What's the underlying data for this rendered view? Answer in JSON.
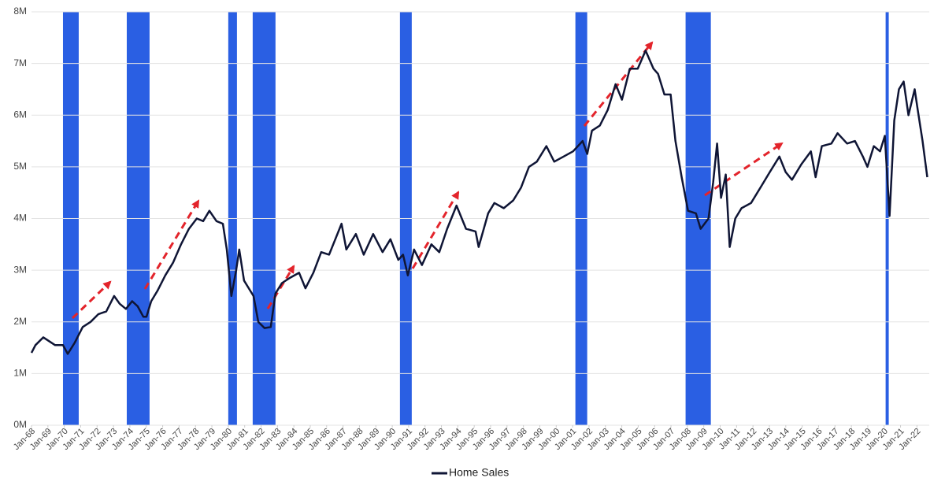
{
  "chart_data": {
    "type": "line",
    "xlim": [
      1968,
      2022.75
    ],
    "ylim": [
      0,
      8
    ],
    "yticks": [
      {
        "value": 0,
        "label": "0M"
      },
      {
        "value": 1,
        "label": "1M"
      },
      {
        "value": 2,
        "label": "2M"
      },
      {
        "value": 3,
        "label": "3M"
      },
      {
        "value": 4,
        "label": "4M"
      },
      {
        "value": 5,
        "label": "5M"
      },
      {
        "value": 6,
        "label": "6M"
      },
      {
        "value": 7,
        "label": "7M"
      },
      {
        "value": 8,
        "label": "8M"
      }
    ],
    "xticks": [
      {
        "value": 1968,
        "label": "Jan-68"
      },
      {
        "value": 1969,
        "label": "Jan-69"
      },
      {
        "value": 1970,
        "label": "Jan-70"
      },
      {
        "value": 1971,
        "label": "Jan-71"
      },
      {
        "value": 1972,
        "label": "Jan-72"
      },
      {
        "value": 1973,
        "label": "Jan-73"
      },
      {
        "value": 1974,
        "label": "Jan-74"
      },
      {
        "value": 1975,
        "label": "Jan-75"
      },
      {
        "value": 1976,
        "label": "Jan-76"
      },
      {
        "value": 1977,
        "label": "Jan-77"
      },
      {
        "value": 1978,
        "label": "Jan-78"
      },
      {
        "value": 1979,
        "label": "Jan-79"
      },
      {
        "value": 1980,
        "label": "Jan-80"
      },
      {
        "value": 1981,
        "label": "Jan-81"
      },
      {
        "value": 1982,
        "label": "Jan-82"
      },
      {
        "value": 1983,
        "label": "Jan-83"
      },
      {
        "value": 1984,
        "label": "Jan-84"
      },
      {
        "value": 1985,
        "label": "Jan-85"
      },
      {
        "value": 1986,
        "label": "Jan-86"
      },
      {
        "value": 1987,
        "label": "Jan-87"
      },
      {
        "value": 1988,
        "label": "Jan-88"
      },
      {
        "value": 1989,
        "label": "Jan-89"
      },
      {
        "value": 1990,
        "label": "Jan-90"
      },
      {
        "value": 1991,
        "label": "Jan-91"
      },
      {
        "value": 1992,
        "label": "Jan-92"
      },
      {
        "value": 1993,
        "label": "Jan-93"
      },
      {
        "value": 1994,
        "label": "Jan-94"
      },
      {
        "value": 1995,
        "label": "Jan-95"
      },
      {
        "value": 1996,
        "label": "Jan-96"
      },
      {
        "value": 1997,
        "label": "Jan-97"
      },
      {
        "value": 1998,
        "label": "Jan-98"
      },
      {
        "value": 1999,
        "label": "Jan-99"
      },
      {
        "value": 2000,
        "label": "Jan-00"
      },
      {
        "value": 2001,
        "label": "Jan-01"
      },
      {
        "value": 2002,
        "label": "Jan-02"
      },
      {
        "value": 2003,
        "label": "Jan-03"
      },
      {
        "value": 2004,
        "label": "Jan-04"
      },
      {
        "value": 2005,
        "label": "Jan-05"
      },
      {
        "value": 2006,
        "label": "Jan-06"
      },
      {
        "value": 2007,
        "label": "Jan-07"
      },
      {
        "value": 2008,
        "label": "Jan-08"
      },
      {
        "value": 2009,
        "label": "Jan-09"
      },
      {
        "value": 2010,
        "label": "Jan-10"
      },
      {
        "value": 2011,
        "label": "Jan-11"
      },
      {
        "value": 2012,
        "label": "Jan-12"
      },
      {
        "value": 2013,
        "label": "Jan-13"
      },
      {
        "value": 2014,
        "label": "Jan-14"
      },
      {
        "value": 2015,
        "label": "Jan-15"
      },
      {
        "value": 2016,
        "label": "Jan-16"
      },
      {
        "value": 2017,
        "label": "Jan-17"
      },
      {
        "value": 2018,
        "label": "Jan-18"
      },
      {
        "value": 2019,
        "label": "Jan-19"
      },
      {
        "value": 2020,
        "label": "Jan-20"
      },
      {
        "value": 2021,
        "label": "Jan-21"
      },
      {
        "value": 2022,
        "label": "Jan-22"
      }
    ],
    "grid": true,
    "recessions": [
      [
        1969.92,
        1970.88
      ],
      [
        1973.81,
        1975.2
      ],
      [
        1980.0,
        1980.53
      ],
      [
        1981.49,
        1982.88
      ],
      [
        1990.47,
        1991.19
      ],
      [
        2001.17,
        2001.89
      ],
      [
        2007.89,
        2009.43
      ],
      [
        2020.09,
        2020.28
      ]
    ],
    "recession_color": "#2a5fe3",
    "legend": "bottom",
    "x": [
      1968.0,
      1968.24,
      1968.72,
      1969.44,
      1969.92,
      1970.21,
      1970.64,
      1971.12,
      1971.6,
      1972.08,
      1972.56,
      1973.04,
      1973.38,
      1973.76,
      1974.14,
      1974.48,
      1974.82,
      1975.01,
      1975.3,
      1975.68,
      1976.16,
      1976.64,
      1977.12,
      1977.6,
      1978.08,
      1978.47,
      1978.85,
      1979.28,
      1979.67,
      1979.91,
      1980.19,
      1980.48,
      1980.67,
      1980.96,
      1981.25,
      1981.54,
      1981.83,
      1982.21,
      1982.59,
      1982.88,
      1983.27,
      1983.75,
      1984.32,
      1984.71,
      1985.19,
      1985.67,
      1986.15,
      1986.53,
      1986.91,
      1987.2,
      1987.78,
      1988.26,
      1988.84,
      1989.41,
      1989.89,
      1990.37,
      1990.66,
      1990.95,
      1991.33,
      1991.81,
      1992.39,
      1992.87,
      1993.35,
      1993.92,
      1994.5,
      1995.08,
      1995.27,
      1995.85,
      1996.23,
      1996.8,
      1997.38,
      1997.86,
      1998.34,
      1998.82,
      1999.4,
      1999.88,
      2000.45,
      2001.03,
      2001.61,
      2001.89,
      2002.18,
      2002.66,
      2003.14,
      2003.62,
      2004.01,
      2004.49,
      2004.97,
      2005.45,
      2005.93,
      2006.21,
      2006.6,
      2006.98,
      2007.27,
      2007.65,
      2008.04,
      2008.52,
      2008.81,
      2009.29,
      2009.57,
      2009.81,
      2010.05,
      2010.34,
      2010.58,
      2010.92,
      2011.3,
      2011.88,
      2012.46,
      2013.03,
      2013.61,
      2013.99,
      2014.38,
      2014.95,
      2015.53,
      2015.82,
      2016.2,
      2016.78,
      2017.16,
      2017.74,
      2018.22,
      2018.7,
      2018.98,
      2019.37,
      2019.75,
      2020.04,
      2020.33,
      2020.62,
      2020.9,
      2021.19,
      2021.48,
      2021.86,
      2022.05,
      2022.34,
      2022.63
    ],
    "series": [
      {
        "name": "Home Sales",
        "color": "#0f1535",
        "values": [
          1.4,
          1.55,
          1.7,
          1.55,
          1.55,
          1.38,
          1.6,
          1.9,
          2.0,
          2.15,
          2.2,
          2.5,
          2.35,
          2.25,
          2.4,
          2.3,
          2.1,
          2.1,
          2.4,
          2.6,
          2.9,
          3.15,
          3.5,
          3.8,
          4.0,
          3.95,
          4.15,
          3.95,
          3.9,
          3.4,
          2.5,
          3.0,
          3.4,
          2.8,
          2.65,
          2.5,
          2.0,
          1.88,
          1.9,
          2.55,
          2.75,
          2.85,
          2.95,
          2.65,
          2.95,
          3.35,
          3.3,
          3.6,
          3.9,
          3.4,
          3.7,
          3.3,
          3.7,
          3.35,
          3.6,
          3.2,
          3.3,
          2.9,
          3.4,
          3.1,
          3.5,
          3.35,
          3.8,
          4.25,
          3.8,
          3.75,
          3.45,
          4.1,
          4.3,
          4.2,
          4.35,
          4.6,
          5.0,
          5.1,
          5.4,
          5.1,
          5.2,
          5.3,
          5.5,
          5.25,
          5.7,
          5.8,
          6.1,
          6.6,
          6.3,
          6.9,
          6.9,
          7.25,
          6.9,
          6.8,
          6.4,
          6.4,
          5.5,
          4.8,
          4.15,
          4.1,
          3.8,
          4.0,
          4.7,
          5.45,
          4.4,
          4.85,
          3.45,
          4.0,
          4.2,
          4.3,
          4.6,
          4.9,
          5.2,
          4.9,
          4.75,
          5.05,
          5.3,
          4.8,
          5.4,
          5.45,
          5.65,
          5.45,
          5.5,
          5.2,
          5.0,
          5.4,
          5.3,
          5.6,
          4.05,
          5.9,
          6.5,
          6.65,
          6.0,
          6.5,
          6.1,
          5.5,
          4.8
        ]
      }
    ]
  }
}
